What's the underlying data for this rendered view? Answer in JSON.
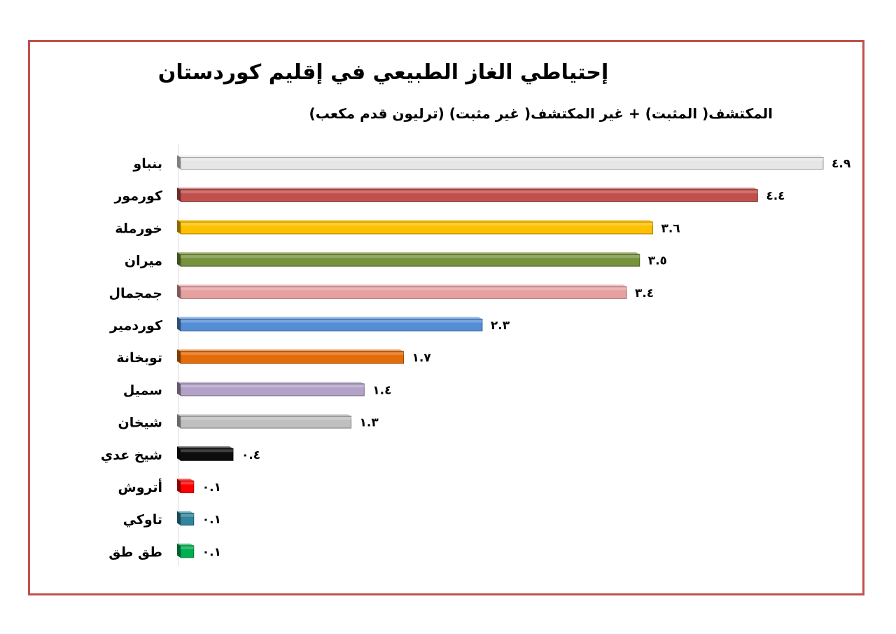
{
  "chart_data": {
    "type": "bar",
    "orientation": "horizontal",
    "title": "إحتياطي الغاز الطبيعي في إقليم كوردستان",
    "subtitle": "المكتشف( المثبت) + غير المكتشف( غير مثبت) (ترليون  قدم مكعب)",
    "categories": [
      "بنباو",
      "كورمور",
      "خورملة",
      "ميران",
      "جمجمال",
      "كوردمير",
      "توبخانة",
      "سميل",
      "شيخان",
      "شيخ عدي",
      "أتروش",
      "تاوكي",
      "طق طق"
    ],
    "values": [
      4.9,
      4.4,
      3.6,
      3.5,
      3.4,
      2.3,
      1.7,
      1.4,
      1.3,
      0.4,
      0.1,
      0.1,
      0.1
    ],
    "data_labels": [
      "٤.٩",
      "٤.٤",
      "٣.٦",
      "٣.٥",
      "٣.٤",
      "٢.٣",
      "١.٧",
      "١.٤",
      "١.٣",
      "٠.٤",
      "٠.١",
      "٠.١",
      "٠.١"
    ],
    "colors": [
      "#e6e6e6",
      "#c0504d",
      "#ffc000",
      "#76923c",
      "#e6a0a0",
      "#558ed5",
      "#e46c0a",
      "#b3a2c7",
      "#bfbfbf",
      "#0d0d0d",
      "#ff0000",
      "#31859c",
      "#00b050"
    ],
    "xlim": [
      0,
      4.9
    ],
    "grid": false,
    "legend": "none",
    "frame_color": "#c0504d"
  }
}
